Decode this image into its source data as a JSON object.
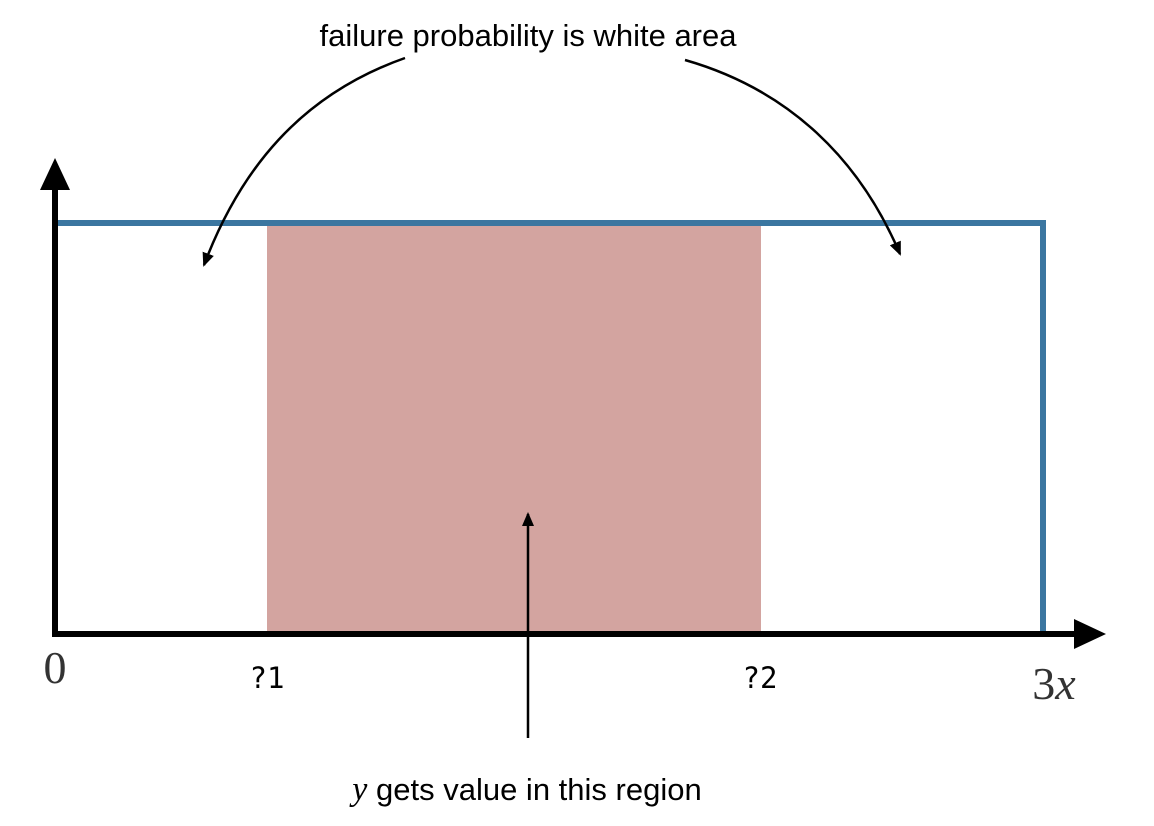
{
  "annotations": {
    "top": "failure probability is white area",
    "bottom_var": "y",
    "bottom_text": " gets value in this region"
  },
  "axis_labels": {
    "origin": "0",
    "q1": "?1",
    "q2": "?2",
    "max_coef": "3",
    "max_var": "x"
  },
  "colors": {
    "axis": "#000000",
    "distribution_outline": "#3b76a0",
    "success_region": "#d3a4a0",
    "arrow": "#000000"
  }
}
